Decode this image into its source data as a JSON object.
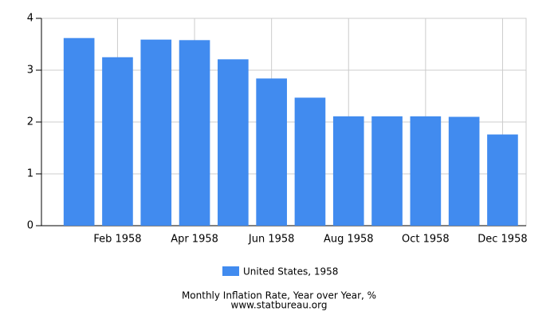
{
  "chart_data": {
    "type": "bar",
    "title": "Monthly Inflation Rate, Year over Year, %",
    "source": "www.statbureau.org",
    "categories": [
      null,
      "Feb 1958",
      null,
      "Apr 1958",
      null,
      "Jun 1958",
      null,
      "Aug 1958",
      null,
      "Oct 1958",
      null,
      "Dec 1958"
    ],
    "series": [
      {
        "name": "United States, 1958",
        "color": "#418bef",
        "values": [
          3.62,
          3.25,
          3.59,
          3.58,
          3.21,
          2.84,
          2.47,
          2.11,
          2.11,
          2.11,
          2.1,
          1.76
        ]
      }
    ],
    "ylim": [
      0,
      4
    ],
    "yticks": [
      0,
      1,
      2,
      3,
      4
    ],
    "grid": true,
    "legend": "bottom"
  }
}
